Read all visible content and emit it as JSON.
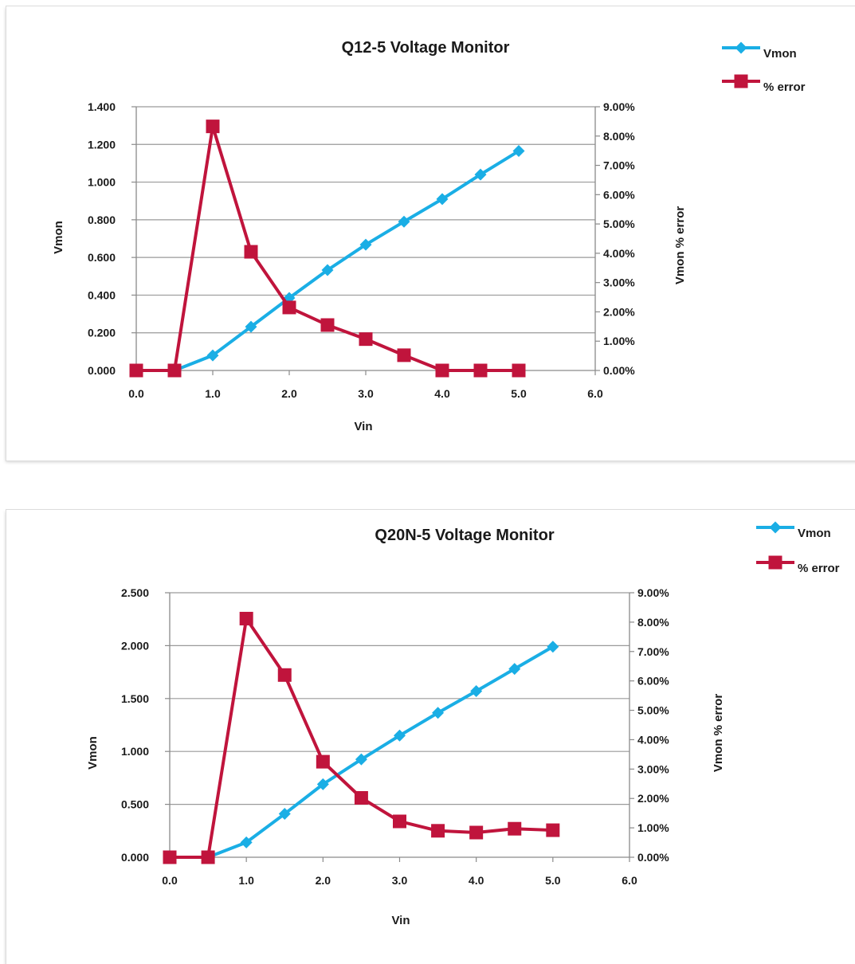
{
  "chart_data": [
    {
      "type": "line",
      "title": "Q12-5 Voltage Monitor",
      "xlabel": "Vin",
      "ylabel": "Vmon",
      "y2label": "Vmon % error",
      "xlim": [
        0,
        6
      ],
      "ylim": [
        0,
        1.4
      ],
      "y2lim": [
        0,
        9
      ],
      "x_ticks": [
        "0.0",
        "1.0",
        "2.0",
        "3.0",
        "4.0",
        "5.0",
        "6.0"
      ],
      "y_ticks": [
        "0.000",
        "0.200",
        "0.400",
        "0.600",
        "0.800",
        "1.000",
        "1.200",
        "1.400"
      ],
      "y2_ticks": [
        "0.00%",
        "1.00%",
        "2.00%",
        "3.00%",
        "4.00%",
        "5.00%",
        "6.00%",
        "7.00%",
        "8.00%",
        "9.00%"
      ],
      "grid": true,
      "legend_position": "top-right",
      "series": [
        {
          "name": "Vmon",
          "axis": "left",
          "color": "#1aaee5",
          "marker": "diamond",
          "x": [
            0.0,
            0.5,
            1.0,
            1.5,
            2.0,
            2.5,
            3.0,
            3.5,
            4.0,
            4.5,
            5.0
          ],
          "y": [
            0.0,
            0.0,
            0.08,
            0.232,
            0.385,
            0.533,
            0.668,
            0.79,
            0.91,
            1.04,
            1.165
          ]
        },
        {
          "name": "% error",
          "axis": "right",
          "color": "#c0143c",
          "marker": "square",
          "x": [
            0.0,
            0.5,
            1.0,
            1.5,
            2.0,
            2.5,
            3.0,
            3.5,
            4.0,
            4.5,
            5.0
          ],
          "y": [
            0.0,
            0.0,
            8.33,
            4.05,
            2.15,
            1.55,
            1.07,
            0.52,
            0.0,
            0.0,
            0.0
          ]
        }
      ]
    },
    {
      "type": "line",
      "title": "Q20N-5 Voltage Monitor",
      "xlabel": "Vin",
      "ylabel": "Vmon",
      "y2label": "Vmon % error",
      "xlim": [
        0,
        6
      ],
      "ylim": [
        0,
        2.5
      ],
      "y2lim": [
        0,
        9
      ],
      "x_ticks": [
        "0.0",
        "1.0",
        "2.0",
        "3.0",
        "4.0",
        "5.0",
        "6.0"
      ],
      "y_ticks": [
        "0.000",
        "0.500",
        "1.000",
        "1.500",
        "2.000",
        "2.500"
      ],
      "y2_ticks": [
        "0.00%",
        "1.00%",
        "2.00%",
        "3.00%",
        "4.00%",
        "5.00%",
        "6.00%",
        "7.00%",
        "8.00%",
        "9.00%"
      ],
      "grid": true,
      "legend_position": "top-right",
      "series": [
        {
          "name": "Vmon",
          "axis": "left",
          "color": "#1aaee5",
          "marker": "diamond",
          "x": [
            0.0,
            0.5,
            1.0,
            1.5,
            2.0,
            2.5,
            3.0,
            3.5,
            4.0,
            4.5,
            5.0
          ],
          "y": [
            0.0,
            0.0,
            0.14,
            0.41,
            0.69,
            0.925,
            1.15,
            1.365,
            1.57,
            1.78,
            1.99
          ]
        },
        {
          "name": "% error",
          "axis": "right",
          "color": "#c0143c",
          "marker": "square",
          "x": [
            0.0,
            0.5,
            1.0,
            1.5,
            2.0,
            2.5,
            3.0,
            3.5,
            4.0,
            4.5,
            5.0
          ],
          "y": [
            0.0,
            0.0,
            8.12,
            6.2,
            3.25,
            2.02,
            1.22,
            0.9,
            0.84,
            0.97,
            0.92
          ]
        }
      ]
    }
  ]
}
